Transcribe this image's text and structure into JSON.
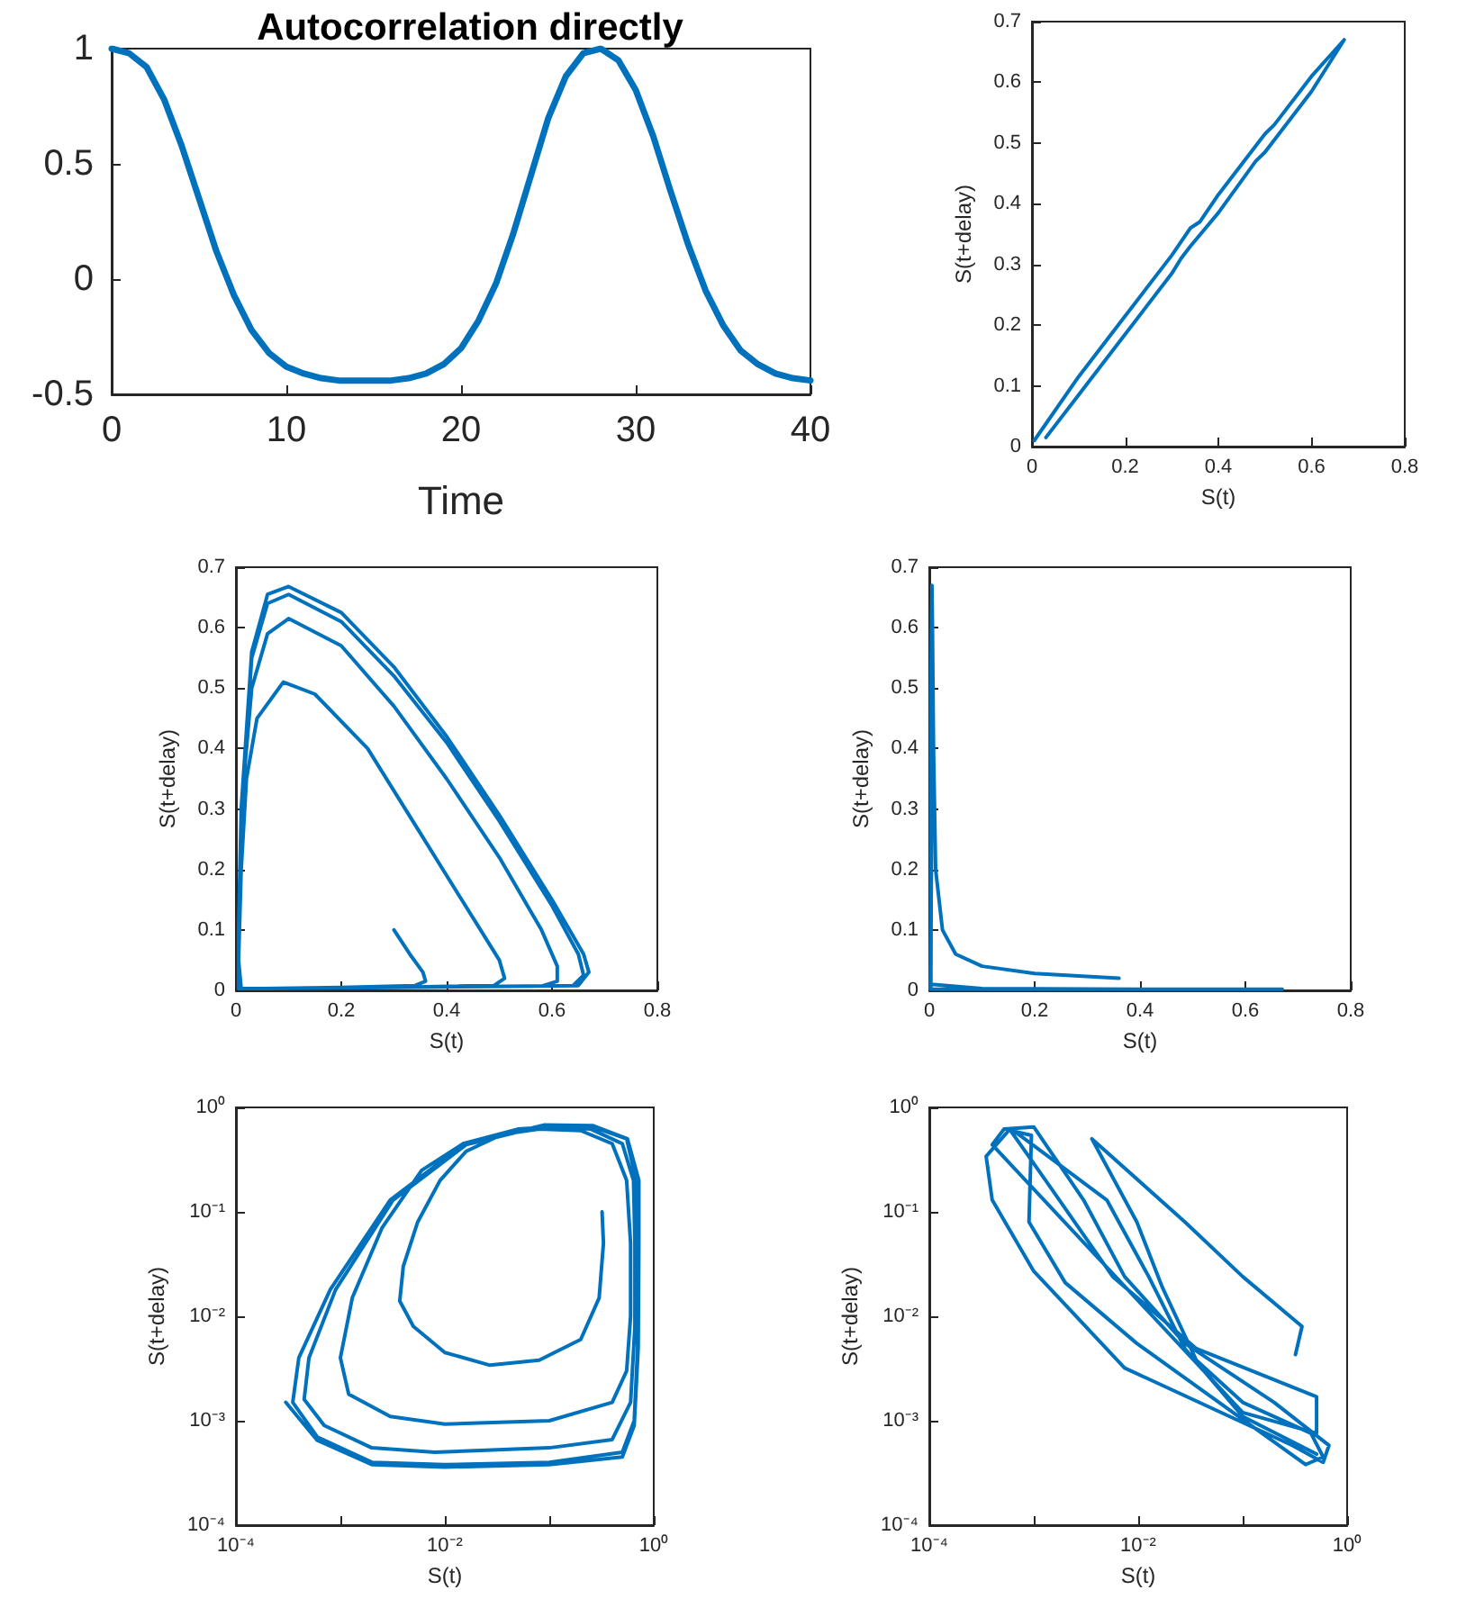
{
  "chart_data": [
    {
      "type": "line",
      "title": "Autocorrelation directly",
      "xlabel": "Time",
      "xlim": [
        0,
        40
      ],
      "xticks": [
        0,
        10,
        20,
        30,
        40
      ],
      "ylim": [
        -0.5,
        1
      ],
      "yticks": [
        -0.5,
        0,
        0.5,
        1
      ],
      "x": [
        0,
        1,
        2,
        3,
        4,
        5,
        6,
        7,
        8,
        9,
        10,
        11,
        12,
        13,
        14,
        15,
        16,
        17,
        18,
        19,
        20,
        21,
        22,
        23,
        24,
        25,
        26,
        27,
        28,
        29,
        30,
        31,
        32,
        33,
        34,
        35,
        36,
        37,
        38,
        39,
        40
      ],
      "series": [
        {
          "color": "#0072bd",
          "values": [
            1,
            0.98,
            0.92,
            0.78,
            0.58,
            0.35,
            0.12,
            -0.07,
            -0.22,
            -0.32,
            -0.38,
            -0.41,
            -0.43,
            -0.44,
            -0.44,
            -0.44,
            -0.44,
            -0.43,
            -0.41,
            -0.37,
            -0.3,
            -0.18,
            -0.02,
            0.2,
            0.45,
            0.7,
            0.88,
            0.98,
            1,
            0.95,
            0.82,
            0.62,
            0.38,
            0.15,
            -0.05,
            -0.2,
            -0.31,
            -0.37,
            -0.41,
            -0.43,
            -0.44
          ]
        }
      ]
    },
    {
      "type": "line",
      "xlabel": "S(t)",
      "ylabel": "S(t+delay)",
      "xlim": [
        0,
        0.8
      ],
      "xticks": [
        0,
        0.2,
        0.4,
        0.6,
        0.8
      ],
      "ylim": [
        0,
        0.7
      ],
      "yticks": [
        0,
        0.1,
        0.2,
        0.3,
        0.4,
        0.5,
        0.6,
        0.7
      ],
      "x": [
        0.005,
        0.1,
        0.2,
        0.3,
        0.34,
        0.36,
        0.4,
        0.5,
        0.52,
        0.6,
        0.67,
        0.6,
        0.5,
        0.48,
        0.4,
        0.34,
        0.32,
        0.3,
        0.2,
        0.1,
        0.03
      ],
      "series": [
        {
          "color": "#0072bd",
          "values": [
            0.01,
            0.115,
            0.215,
            0.315,
            0.36,
            0.37,
            0.415,
            0.515,
            0.53,
            0.61,
            0.67,
            0.585,
            0.485,
            0.47,
            0.385,
            0.33,
            0.31,
            0.285,
            0.185,
            0.085,
            0.015
          ]
        }
      ]
    },
    {
      "type": "line",
      "xlabel": "S(t)",
      "ylabel": "S(t+delay)",
      "xlim": [
        0,
        0.8
      ],
      "xticks": [
        0,
        0.2,
        0.4,
        0.6,
        0.8
      ],
      "ylim": [
        0,
        0.7
      ],
      "yticks": [
        0,
        0.1,
        0.2,
        0.3,
        0.4,
        0.5,
        0.6,
        0.7
      ],
      "x": [
        0.3,
        0.33,
        0.355,
        0.36,
        0.34,
        0.2,
        0.05,
        0.01,
        0.005,
        0.01,
        0.02,
        0.04,
        0.09,
        0.15,
        0.25,
        0.35,
        0.45,
        0.5,
        0.51,
        0.49,
        0.3,
        0.05,
        0.005,
        0.005,
        0.01,
        0.03,
        0.06,
        0.1,
        0.2,
        0.3,
        0.4,
        0.5,
        0.58,
        0.61,
        0.61,
        0.58,
        0.3,
        0.05,
        0.005,
        0.005,
        0.01,
        0.03,
        0.06,
        0.1,
        0.2,
        0.3,
        0.4,
        0.5,
        0.6,
        0.65,
        0.66,
        0.64,
        0.3,
        0.05,
        0.005,
        0.005,
        0.01,
        0.03,
        0.06,
        0.1,
        0.2,
        0.3,
        0.4,
        0.5,
        0.6,
        0.66,
        0.67,
        0.65,
        0.3
      ],
      "series": [
        {
          "color": "#0072bd",
          "values": [
            0.1,
            0.06,
            0.03,
            0.015,
            0.008,
            0.005,
            0.003,
            0.003,
            0.05,
            0.2,
            0.35,
            0.45,
            0.51,
            0.49,
            0.4,
            0.26,
            0.12,
            0.05,
            0.02,
            0.008,
            0.005,
            0.003,
            0.003,
            0.1,
            0.3,
            0.5,
            0.59,
            0.615,
            0.57,
            0.47,
            0.35,
            0.22,
            0.1,
            0.04,
            0.015,
            0.007,
            0.005,
            0.003,
            0.003,
            0.1,
            0.3,
            0.55,
            0.64,
            0.655,
            0.61,
            0.52,
            0.41,
            0.28,
            0.14,
            0.06,
            0.025,
            0.008,
            0.005,
            0.003,
            0.003,
            0.1,
            0.3,
            0.56,
            0.655,
            0.668,
            0.625,
            0.535,
            0.42,
            0.29,
            0.15,
            0.06,
            0.03,
            0.008,
            0.005
          ]
        }
      ]
    },
    {
      "type": "line",
      "xlabel": "S(t)",
      "ylabel": "S(t+delay)",
      "xlim": [
        0,
        0.8
      ],
      "xticks": [
        0,
        0.2,
        0.4,
        0.6,
        0.8
      ],
      "ylim": [
        0,
        0.7
      ],
      "yticks": [
        0,
        0.1,
        0.2,
        0.3,
        0.4,
        0.5,
        0.6,
        0.7
      ],
      "x": [
        0.36,
        0.2,
        0.1,
        0.05,
        0.025,
        0.012,
        0.008,
        0.006,
        0.005,
        0.004,
        0.003,
        0.1,
        0.4,
        0.67,
        0.3,
        0.003,
        0.003,
        0.005,
        0.004,
        0.002
      ],
      "series": [
        {
          "color": "#0072bd",
          "values": [
            0.02,
            0.028,
            0.04,
            0.06,
            0.1,
            0.2,
            0.4,
            0.6,
            0.67,
            0.3,
            0.01,
            0.003,
            0.002,
            0.002,
            0.002,
            0.002,
            0.5,
            0.66,
            0.2,
            0.002
          ]
        }
      ]
    },
    {
      "type": "line",
      "log": "xy",
      "xlabel": "S(t)",
      "ylabel": "S(t+delay)",
      "xlim": [
        0.0001,
        1
      ],
      "xticks": [
        {
          "value": 0.0001,
          "label": "10⁻⁴"
        },
        {
          "value": 0.001,
          "label": null
        },
        {
          "value": 0.01,
          "label": "10⁻²"
        },
        {
          "value": 0.1,
          "label": null
        },
        {
          "value": 1,
          "label": "10⁰"
        }
      ],
      "ylim": [
        0.0001,
        1
      ],
      "yticks": [
        {
          "value": 0.0001,
          "label": "10⁻⁴"
        },
        {
          "value": 0.001,
          "label": "10⁻³"
        },
        {
          "value": 0.01,
          "label": "10⁻²"
        },
        {
          "value": 0.1,
          "label": "10⁻¹"
        },
        {
          "value": 1,
          "label": "10⁰"
        }
      ],
      "x": [
        0.32,
        0.33,
        0.3,
        0.2,
        0.08,
        0.027,
        0.01,
        0.005,
        0.0037,
        0.004,
        0.0055,
        0.009,
        0.016,
        0.035,
        0.08,
        0.2,
        0.4,
        0.55,
        0.6,
        0.6,
        0.55,
        0.4,
        0.1,
        0.01,
        0.003,
        0.0012,
        0.001,
        0.0013,
        0.0025,
        0.006,
        0.015,
        0.05,
        0.1,
        0.25,
        0.5,
        0.64,
        0.66,
        0.66,
        0.6,
        0.4,
        0.1,
        0.008,
        0.002,
        0.0007,
        0.00045,
        0.0005,
        0.0009,
        0.0032,
        0.016,
        0.09,
        0.25,
        0.55,
        0.68,
        0.7,
        0.7,
        0.65,
        0.5,
        0.1,
        0.01,
        0.002,
        0.0006,
        0.00035,
        0.0004,
        0.0008,
        0.003,
        0.015,
        0.09,
        0.26,
        0.56,
        0.72,
        0.72,
        0.71,
        0.65,
        0.5,
        0.1,
        0.01,
        0.002,
        0.0006,
        0.0003
      ],
      "series": [
        {
          "color": "#0072bd",
          "values": [
            0.1,
            0.05,
            0.015,
            0.006,
            0.0038,
            0.0034,
            0.0045,
            0.008,
            0.014,
            0.03,
            0.08,
            0.2,
            0.38,
            0.55,
            0.62,
            0.6,
            0.45,
            0.2,
            0.05,
            0.01,
            0.003,
            0.0015,
            0.001,
            0.00093,
            0.0011,
            0.0018,
            0.004,
            0.015,
            0.07,
            0.25,
            0.45,
            0.62,
            0.65,
            0.62,
            0.45,
            0.2,
            0.05,
            0.008,
            0.0015,
            0.00066,
            0.00055,
            0.0005,
            0.00055,
            0.0009,
            0.0016,
            0.004,
            0.018,
            0.13,
            0.44,
            0.67,
            0.66,
            0.5,
            0.2,
            0.05,
            0.005,
            0.001,
            0.0005,
            0.0004,
            0.00038,
            0.0004,
            0.0007,
            0.0015,
            0.004,
            0.018,
            0.13,
            0.44,
            0.68,
            0.67,
            0.5,
            0.2,
            0.05,
            0.005,
            0.0009,
            0.00045,
            0.00038,
            0.00036,
            0.00038,
            0.00065,
            0.0015
          ]
        }
      ]
    },
    {
      "type": "line",
      "log": "xy",
      "xlabel": "S(t)",
      "ylabel": "S(t+delay)",
      "xlim": [
        0.0001,
        1
      ],
      "xticks": [
        {
          "value": 0.0001,
          "label": "10⁻⁴"
        },
        {
          "value": 0.001,
          "label": null
        },
        {
          "value": 0.01,
          "label": "10⁻²"
        },
        {
          "value": 0.1,
          "label": null
        },
        {
          "value": 1,
          "label": "10⁰"
        }
      ],
      "ylim": [
        0.0001,
        1
      ],
      "yticks": [
        {
          "value": 0.0001,
          "label": "10⁻⁴"
        },
        {
          "value": 0.001,
          "label": "10⁻³"
        },
        {
          "value": 0.01,
          "label": "10⁻²"
        },
        {
          "value": 0.1,
          "label": "10⁻¹"
        },
        {
          "value": 1,
          "label": "10⁰"
        }
      ],
      "x": [
        0.32,
        0.37,
        0.1,
        0.028,
        0.0036,
        0.0097,
        0.017,
        0.036,
        0.1,
        0.45,
        0.59,
        0.4,
        0.0097,
        0.002,
        0.0009,
        0.00095,
        0.0006,
        0.0013,
        0.0057,
        0.036,
        0.51,
        0.51,
        0.1,
        0.0004,
        0.00052,
        0.001,
        0.003,
        0.0074,
        0.028,
        0.2,
        0.67,
        0.59,
        0.3,
        0.0074,
        0.001,
        0.0004,
        0.00035,
        0.0006,
        0.005,
        0.0126,
        0.028,
        0.1,
        0.51
      ],
      "series": [
        {
          "color": "#0072bd",
          "values": [
            0.0043,
            0.008,
            0.024,
            0.08,
            0.5,
            0.08,
            0.019,
            0.0038,
            0.0015,
            0.00076,
            0.00045,
            0.00038,
            0.0055,
            0.021,
            0.08,
            0.54,
            0.6,
            0.2,
            0.024,
            0.0049,
            0.0017,
            0.00076,
            0.0012,
            0.44,
            0.62,
            0.65,
            0.13,
            0.024,
            0.0055,
            0.0015,
            0.00058,
            0.0004,
            0.00058,
            0.0032,
            0.027,
            0.13,
            0.34,
            0.63,
            0.13,
            0.024,
            0.0049,
            0.0011,
            0.00048
          ]
        }
      ]
    }
  ]
}
